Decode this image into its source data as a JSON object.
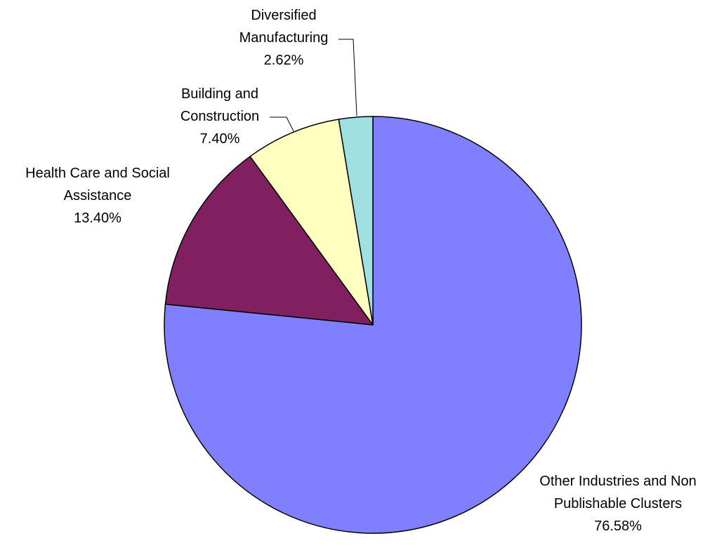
{
  "chart_data": {
    "type": "pie",
    "title": "",
    "start": "12 o'clock",
    "direction": "clockwise",
    "slices": [
      {
        "label_lines": [
          "Other Industries and Non",
          "Publishable Clusters"
        ],
        "value": 76.58,
        "value_label": "76.58%",
        "color": "#8080ff"
      },
      {
        "label_lines": [
          "Health Care and Social",
          "Assistance"
        ],
        "value": 13.4,
        "value_label": "13.40%",
        "color": "#802060"
      },
      {
        "label_lines": [
          "Building and",
          "Construction"
        ],
        "value": 7.4,
        "value_label": "7.40%",
        "color": "#ffffc0"
      },
      {
        "label_lines": [
          "Diversified",
          "Manufacturing"
        ],
        "value": 2.62,
        "value_label": "2.62%",
        "color": "#a0e0e0"
      }
    ]
  }
}
